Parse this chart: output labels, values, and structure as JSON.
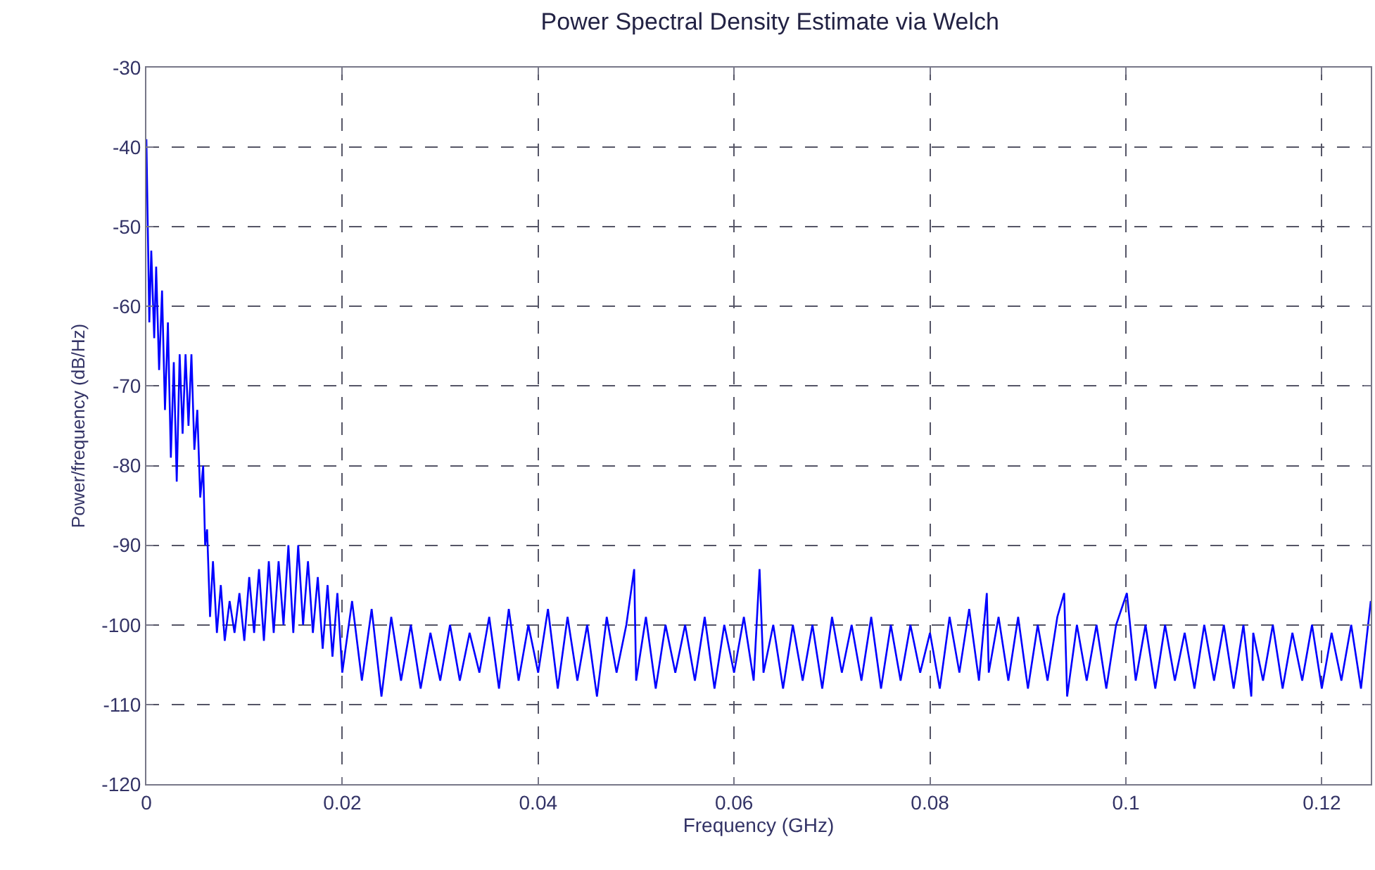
{
  "chart_data": {
    "type": "line",
    "title": "Power Spectral Density Estimate via Welch",
    "xlabel": "Frequency (GHz)",
    "ylabel": "Power/frequency (dB/Hz)",
    "xlim": [
      0,
      0.125
    ],
    "xticks": [
      0,
      0.02,
      0.04,
      0.06,
      0.08,
      0.1,
      0.12
    ],
    "ylim": [
      -120,
      -30
    ],
    "yticks": [
      -120,
      -110,
      -100,
      -90,
      -80,
      -70,
      -60,
      -50,
      -40,
      -30
    ],
    "grid": true,
    "line_style": "solid",
    "marker": "none",
    "series": [
      {
        "color": "#0000ff",
        "x": [
          0,
          0.0003,
          0.0005,
          0.0008,
          0.001,
          0.0013,
          0.0016,
          0.0019,
          0.0022,
          0.0025,
          0.0028,
          0.0031,
          0.0034,
          0.0037,
          0.004,
          0.0043,
          0.0046,
          0.0049,
          0.0052,
          0.0055,
          0.0058,
          0.006,
          0.0062,
          0.0065,
          0.0068,
          0.0072,
          0.0076,
          0.008,
          0.0085,
          0.009,
          0.0095,
          0.01,
          0.0105,
          0.011,
          0.0115,
          0.012,
          0.0125,
          0.013,
          0.0135,
          0.014,
          0.0145,
          0.015,
          0.0155,
          0.016,
          0.0165,
          0.017,
          0.0175,
          0.018,
          0.0185,
          0.019,
          0.0195,
          0.02,
          0.021,
          0.022,
          0.023,
          0.024,
          0.025,
          0.026,
          0.027,
          0.028,
          0.029,
          0.03,
          0.031,
          0.032,
          0.033,
          0.034,
          0.035,
          0.036,
          0.037,
          0.038,
          0.039,
          0.04,
          0.041,
          0.042,
          0.043,
          0.044,
          0.045,
          0.046,
          0.047,
          0.048,
          0.049,
          0.0498,
          0.05,
          0.051,
          0.052,
          0.053,
          0.054,
          0.055,
          0.056,
          0.057,
          0.058,
          0.059,
          0.06,
          0.061,
          0.062,
          0.0626,
          0.063,
          0.064,
          0.065,
          0.066,
          0.067,
          0.068,
          0.069,
          0.07,
          0.071,
          0.072,
          0.073,
          0.074,
          0.075,
          0.076,
          0.077,
          0.078,
          0.079,
          0.08,
          0.081,
          0.082,
          0.083,
          0.084,
          0.085,
          0.0858,
          0.086,
          0.087,
          0.088,
          0.089,
          0.09,
          0.091,
          0.092,
          0.093,
          0.0937,
          0.094,
          0.095,
          0.096,
          0.097,
          0.098,
          0.099,
          0.1001,
          0.101,
          0.102,
          0.103,
          0.104,
          0.105,
          0.106,
          0.107,
          0.108,
          0.109,
          0.11,
          0.111,
          0.112,
          0.1128,
          0.113,
          0.114,
          0.115,
          0.116,
          0.117,
          0.118,
          0.119,
          0.12,
          0.121,
          0.122,
          0.123,
          0.124,
          0.125
        ],
        "values": [
          -39,
          -62,
          -53,
          -64,
          -55,
          -68,
          -58,
          -73,
          -62,
          -79,
          -67,
          -82,
          -66,
          -76,
          -66,
          -75,
          -66,
          -78,
          -73,
          -84,
          -80,
          -90,
          -88,
          -99,
          -92,
          -101,
          -95,
          -102,
          -97,
          -101,
          -96,
          -102,
          -94,
          -101,
          -93,
          -102,
          -92,
          -101,
          -92,
          -100,
          -90,
          -101,
          -90,
          -100,
          -92,
          -101,
          -94,
          -103,
          -95,
          -104,
          -96,
          -106,
          -97,
          -107,
          -98,
          -109,
          -99,
          -107,
          -100,
          -108,
          -101,
          -107,
          -100,
          -107,
          -101,
          -106,
          -99,
          -108,
          -98,
          -107,
          -100,
          -106,
          -98,
          -108,
          -99,
          -107,
          -100,
          -109,
          -99,
          -106,
          -100,
          -93,
          -107,
          -99,
          -108,
          -100,
          -106,
          -100,
          -107,
          -99,
          -108,
          -100,
          -106,
          -99,
          -107,
          -93,
          -106,
          -100,
          -108,
          -100,
          -107,
          -100,
          -108,
          -99,
          -106,
          -100,
          -107,
          -99,
          -108,
          -100,
          -107,
          -100,
          -106,
          -101,
          -108,
          -99,
          -106,
          -98,
          -107,
          -96,
          -106,
          -99,
          -107,
          -99,
          -108,
          -100,
          -107,
          -99,
          -96,
          -109,
          -100,
          -107,
          -100,
          -108,
          -100,
          -96,
          -107,
          -100,
          -108,
          -100,
          -107,
          -101,
          -108,
          -100,
          -107,
          -100,
          -108,
          -100,
          -109,
          -101,
          -107,
          -100,
          -108,
          -101,
          -107,
          -100,
          -108,
          -101,
          -107,
          -100,
          -108,
          -97
        ]
      }
    ]
  }
}
